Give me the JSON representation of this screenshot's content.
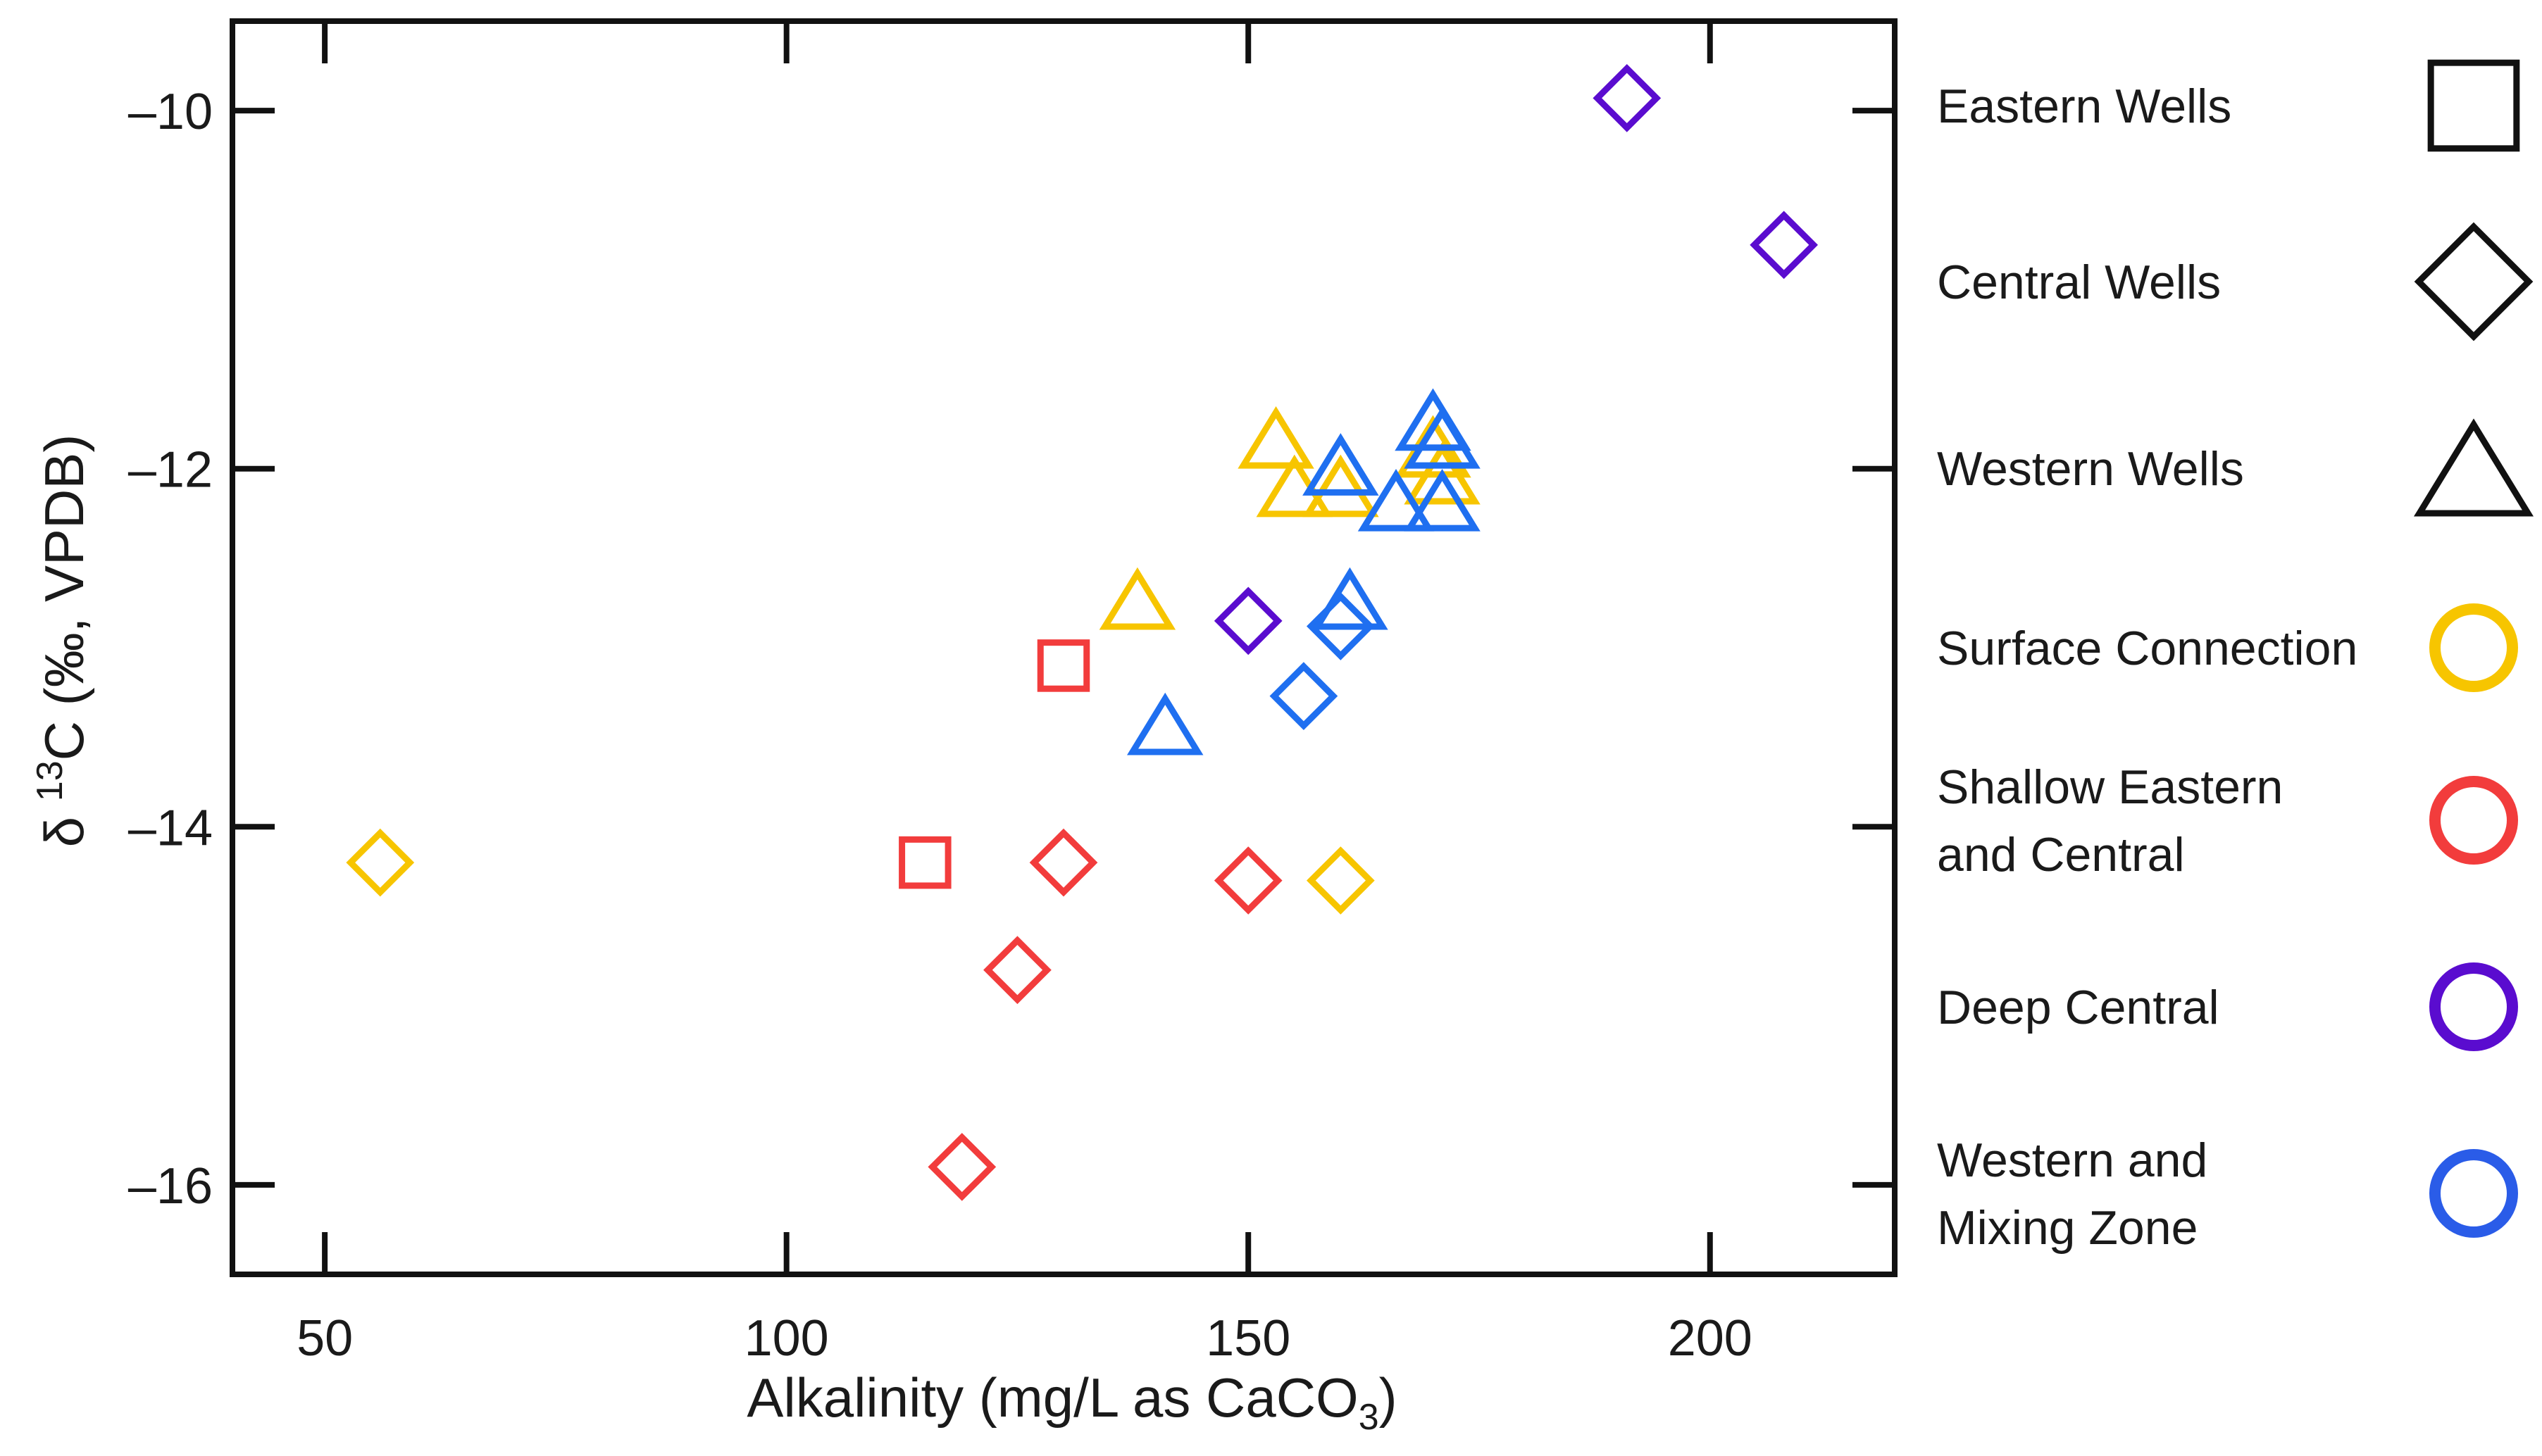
{
  "chart_data": {
    "type": "scatter",
    "xlabel_main": "Alkalinity (mg/L as CaCO",
    "xlabel_sub": "3",
    "xlabel_end": ")",
    "ylabel_prefix": "δ ",
    "ylabel_sup": "13",
    "ylabel_main": "C (‰, VPDB)",
    "xlim": [
      40,
      220
    ],
    "ylim": [
      -16.5,
      -9.5
    ],
    "x_ticks": [
      50,
      100,
      150,
      200
    ],
    "x_tick_labels": [
      "50",
      "100",
      "150",
      "200"
    ],
    "y_ticks": [
      -10,
      -12,
      -14,
      -16
    ],
    "y_tick_labels": [
      "–10",
      "–12",
      "–14",
      "–16"
    ],
    "grid": false,
    "legend_placement": "right",
    "colors": {
      "surface": "#f7c500",
      "shallow": "#f23c3c",
      "deep": "#5a0ccf",
      "western": "#1f6ff0",
      "axis": "#111111"
    },
    "legend": {
      "shapes": [
        {
          "label": "Eastern Wells",
          "marker": "square"
        },
        {
          "label": "Central Wells",
          "marker": "diamond"
        },
        {
          "label": "Western Wells",
          "marker": "triangle"
        }
      ],
      "groups": [
        {
          "lines": [
            "Surface Connection"
          ],
          "color": "#f7c500"
        },
        {
          "lines": [
            "Shallow Eastern",
            "and Central"
          ],
          "color": "#f23c3c"
        },
        {
          "lines": [
            "Deep Central"
          ],
          "color": "#5a0ccf"
        },
        {
          "lines": [
            "Western and",
            "Mixing Zone"
          ],
          "color": "#2a5ce8"
        }
      ]
    },
    "series": [
      {
        "group": "Surface Connection",
        "color": "#f7c500",
        "points": [
          {
            "x": 56,
            "y": -14.2,
            "marker": "diamond"
          },
          {
            "x": 160,
            "y": -14.3,
            "marker": "diamond"
          },
          {
            "x": 138,
            "y": -12.75,
            "marker": "triangle"
          },
          {
            "x": 153,
            "y": -11.85,
            "marker": "triangle"
          },
          {
            "x": 155,
            "y": -12.12,
            "marker": "triangle"
          },
          {
            "x": 160,
            "y": -12.12,
            "marker": "triangle"
          },
          {
            "x": 170,
            "y": -11.9,
            "marker": "triangle"
          },
          {
            "x": 171,
            "y": -12.05,
            "marker": "triangle"
          }
        ]
      },
      {
        "group": "Shallow Eastern and Central",
        "color": "#f23c3c",
        "points": [
          {
            "x": 130,
            "y": -13.1,
            "marker": "square"
          },
          {
            "x": 115,
            "y": -14.2,
            "marker": "square"
          },
          {
            "x": 130,
            "y": -14.2,
            "marker": "diamond"
          },
          {
            "x": 150,
            "y": -14.3,
            "marker": "diamond"
          },
          {
            "x": 125,
            "y": -14.8,
            "marker": "diamond"
          },
          {
            "x": 119,
            "y": -15.9,
            "marker": "diamond"
          }
        ]
      },
      {
        "group": "Deep Central",
        "color": "#5a0ccf",
        "points": [
          {
            "x": 191,
            "y": -9.93,
            "marker": "diamond"
          },
          {
            "x": 208,
            "y": -10.75,
            "marker": "diamond"
          },
          {
            "x": 150,
            "y": -12.85,
            "marker": "diamond"
          }
        ]
      },
      {
        "group": "Western and Mixing Zone",
        "color": "#1f6ff0",
        "points": [
          {
            "x": 160,
            "y": -12.88,
            "marker": "diamond"
          },
          {
            "x": 156,
            "y": -13.27,
            "marker": "diamond"
          },
          {
            "x": 141,
            "y": -13.45,
            "marker": "triangle"
          },
          {
            "x": 161,
            "y": -12.75,
            "marker": "triangle"
          },
          {
            "x": 160,
            "y": -12.0,
            "marker": "triangle"
          },
          {
            "x": 166,
            "y": -12.2,
            "marker": "triangle"
          },
          {
            "x": 170,
            "y": -11.75,
            "marker": "triangle"
          },
          {
            "x": 171,
            "y": -11.85,
            "marker": "triangle"
          },
          {
            "x": 171,
            "y": -12.2,
            "marker": "triangle"
          }
        ]
      }
    ]
  }
}
